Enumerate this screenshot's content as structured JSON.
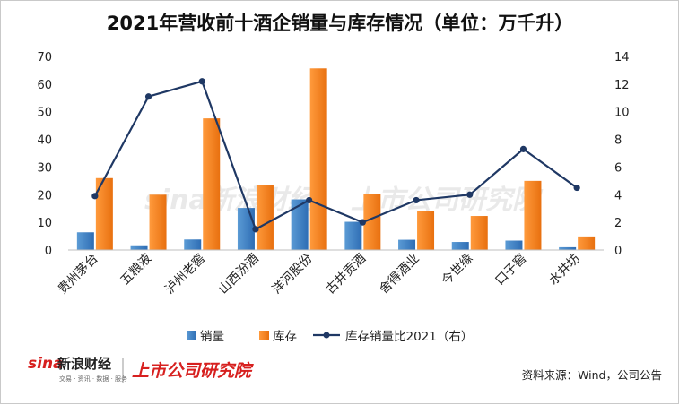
{
  "chart_data": {
    "type": "bar",
    "title": "2021年营收前十酒企销量与库存情况（单位：万千升）",
    "categories": [
      "贵州茅台",
      "五粮液",
      "泸州老窖",
      "山西汾酒",
      "洋河股份",
      "古井贡酒",
      "舍得酒业",
      "今世缘",
      "口子窖",
      "水井坊"
    ],
    "series": [
      {
        "name": "销量",
        "axis": "left",
        "kind": "bar",
        "color": "#2E75B6",
        "values": [
          6.4,
          1.7,
          3.8,
          15.2,
          18.3,
          10.2,
          3.7,
          2.9,
          3.4,
          1.0
        ]
      },
      {
        "name": "库存",
        "axis": "left",
        "kind": "bar",
        "color": "#F07A1A",
        "values": [
          26.0,
          20.0,
          47.6,
          23.6,
          65.7,
          20.2,
          14.1,
          12.3,
          25.0,
          4.9
        ]
      },
      {
        "name": "库存销量比2021（右）",
        "axis": "right",
        "kind": "line",
        "color": "#1F3864",
        "values": [
          3.9,
          11.1,
          12.2,
          1.5,
          3.6,
          2.0,
          3.6,
          4.0,
          7.3,
          4.5
        ]
      }
    ],
    "ylim": [
      0,
      70
    ],
    "yticks": [
      0,
      10,
      20,
      30,
      40,
      50,
      60,
      70
    ],
    "y2lim": [
      0,
      14
    ],
    "y2ticks": [
      0,
      2,
      4,
      6,
      8,
      10,
      12,
      14
    ],
    "grid": false,
    "legend": "bottom"
  },
  "watermark": {
    "left": "sina新浪财经",
    "right": "上市公司研究院"
  },
  "footer": {
    "logo_left": "新浪财经",
    "logo_sina": "sina",
    "logo_sub": "交易 · 资讯 · 数据 · 服务",
    "logo_right": "上市公司研究院",
    "source": "资料来源：Wind，公司公告"
  },
  "colors": {
    "bar_sales": "#2E75B6",
    "bar_inventory": "#F07A1A",
    "line_ratio": "#1F3864",
    "brand_red": "#D7201F"
  }
}
